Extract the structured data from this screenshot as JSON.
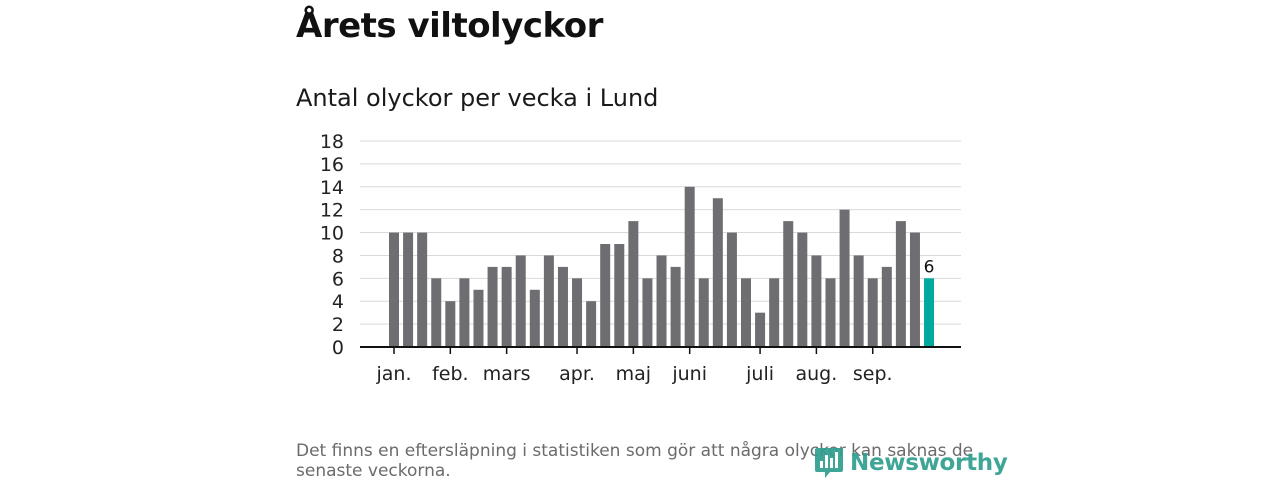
{
  "title": "Årets viltolyckor",
  "footnote": "Det finns en eftersläpning i statistiken som gör att några olyckor kan saknas de senaste veckorna.",
  "brand": "Newsworthy",
  "colors": {
    "bar": "#6e6d72",
    "highlight": "#00a99d",
    "grid": "#d9d9d9",
    "axis": "#111111",
    "brand": "#2f9e8f"
  },
  "chart_data": {
    "type": "bar",
    "title": "Antal olyckor per vecka i Lund",
    "xlabel": "",
    "ylabel": "",
    "ylim": [
      0,
      18
    ],
    "yticks": [
      0,
      2,
      4,
      6,
      8,
      10,
      12,
      14,
      16,
      18
    ],
    "grid": true,
    "values": [
      10,
      10,
      10,
      6,
      4,
      6,
      5,
      7,
      7,
      8,
      5,
      8,
      7,
      6,
      4,
      9,
      9,
      11,
      6,
      8,
      7,
      14,
      6,
      13,
      10,
      6,
      3,
      6,
      11,
      10,
      8,
      6,
      12,
      8,
      6,
      7,
      11,
      10,
      6
    ],
    "highlight_index": 38,
    "data_labels": [
      {
        "index": 38,
        "text": "6"
      }
    ],
    "month_labels": [
      {
        "label": "jan.",
        "week_index": 0
      },
      {
        "label": "feb.",
        "week_index": 4
      },
      {
        "label": "mars",
        "week_index": 8
      },
      {
        "label": "apr.",
        "week_index": 13
      },
      {
        "label": "maj",
        "week_index": 17
      },
      {
        "label": "juni",
        "week_index": 21
      },
      {
        "label": "juli",
        "week_index": 26
      },
      {
        "label": "aug.",
        "week_index": 30
      },
      {
        "label": "sep.",
        "week_index": 34
      }
    ]
  }
}
